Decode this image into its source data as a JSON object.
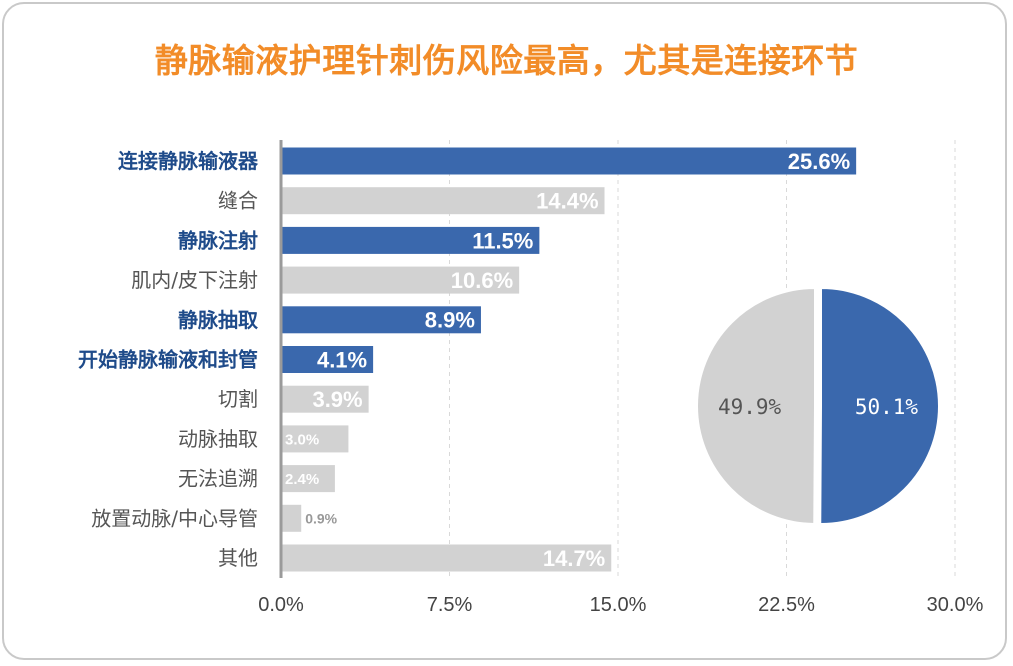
{
  "title": "静脉输液护理针刺伤风险最高，尤其是连接环节",
  "colors": {
    "highlight": "#3a68ad",
    "other": "#d2d2d2",
    "highlight_text": "#1f4b8a",
    "other_text": "#555555",
    "title": "#f28c28"
  },
  "chart_data": [
    {
      "type": "bar",
      "orientation": "horizontal",
      "categories": [
        "连接静脉输液器",
        "缝合",
        "静脉注射",
        "肌内/皮下注射",
        "静脉抽取",
        "开始静脉输液和封管",
        "切割",
        "动脉抽取",
        "无法追溯",
        "放置动脉/中心导管",
        "其他"
      ],
      "values": [
        25.6,
        14.4,
        11.5,
        10.6,
        8.9,
        4.1,
        3.9,
        3.0,
        2.4,
        0.9,
        14.7
      ],
      "value_labels": [
        "25.6%",
        "14.4%",
        "11.5%",
        "10.6%",
        "8.9%",
        "4.1%",
        "3.9%",
        "3.0%",
        "2.4%",
        "0.9%",
        "14.7%"
      ],
      "highlighted": [
        true,
        false,
        true,
        false,
        true,
        true,
        false,
        false,
        false,
        false,
        false
      ],
      "xlim": [
        0,
        30
      ],
      "xticks": [
        "0.0%",
        "7.5%",
        "15.0%",
        "22.5%",
        "30.0%"
      ],
      "xtick_values": [
        0,
        7.5,
        15,
        22.5,
        30
      ],
      "grid": true
    },
    {
      "type": "pie",
      "values": [
        50.1,
        49.9
      ],
      "labels": [
        "50.1%",
        "49.9%"
      ],
      "exploded_first": true
    }
  ]
}
